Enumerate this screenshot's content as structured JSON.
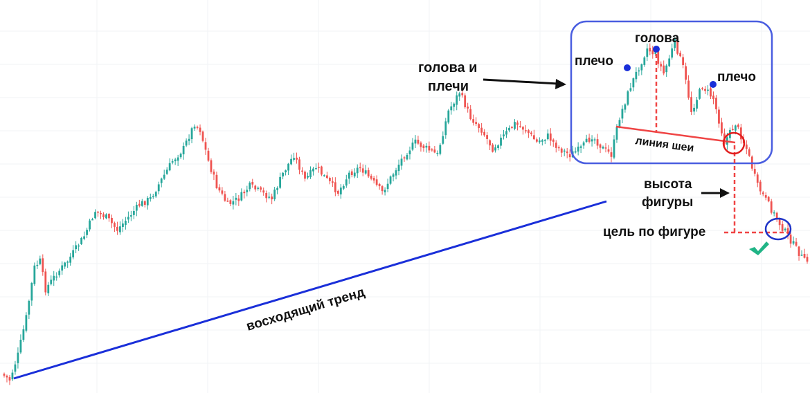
{
  "chart_data": {
    "type": "candlestick",
    "title": "",
    "xlabel": "",
    "ylabel": "",
    "grid": true,
    "colors": {
      "up": "#26a69a",
      "down": "#ef5350",
      "trendline": "#1a2fd9",
      "neckline": "#ef4444",
      "pattern_frame": "#4a5ee0",
      "target_marker": "#1e33c7",
      "neck_break_marker": "#e11d1d",
      "check": "#20b486",
      "arrow": "#111111"
    },
    "trend_segments": [
      {
        "from": 0,
        "to": 0.0,
        "desc": "start"
      },
      {
        "to": 0.3,
        "via": [
          [
            0,
            0.0
          ],
          [
            3,
            -0.02
          ],
          [
            6,
            0.06
          ],
          [
            9,
            0.18
          ],
          [
            12,
            0.34
          ],
          [
            14,
            0.36
          ],
          [
            16,
            0.27
          ],
          [
            20,
            0.32
          ],
          [
            24,
            0.36
          ],
          [
            27,
            0.4
          ],
          [
            30,
            0.44
          ],
          [
            34,
            0.52
          ],
          [
            38,
            0.5
          ],
          [
            42,
            0.46
          ],
          [
            46,
            0.5
          ],
          [
            50,
            0.54
          ],
          [
            54,
            0.56
          ],
          [
            58,
            0.62
          ],
          [
            62,
            0.68
          ],
          [
            66,
            0.72
          ],
          [
            70,
            0.8
          ],
          [
            72,
            0.78
          ],
          [
            75,
            0.68
          ],
          [
            78,
            0.6
          ],
          [
            82,
            0.54
          ],
          [
            86,
            0.56
          ],
          [
            90,
            0.6
          ],
          [
            94,
            0.58
          ],
          [
            98,
            0.56
          ],
          [
            102,
            0.64
          ],
          [
            106,
            0.7
          ],
          [
            110,
            0.62
          ],
          [
            114,
            0.66
          ],
          [
            118,
            0.62
          ],
          [
            122,
            0.58
          ],
          [
            126,
            0.64
          ],
          [
            130,
            0.66
          ],
          [
            134,
            0.62
          ],
          [
            138,
            0.58
          ],
          [
            142,
            0.64
          ],
          [
            146,
            0.7
          ],
          [
            150,
            0.74
          ],
          [
            154,
            0.72
          ],
          [
            158,
            0.7
          ],
          [
            162,
            0.84
          ],
          [
            166,
            0.9
          ],
          [
            170,
            0.82
          ],
          [
            174,
            0.78
          ],
          [
            178,
            0.72
          ],
          [
            182,
            0.76
          ],
          [
            186,
            0.8
          ],
          [
            190,
            0.78
          ],
          [
            194,
            0.74
          ],
          [
            198,
            0.76
          ],
          [
            202,
            0.72
          ],
          [
            206,
            0.7
          ],
          [
            210,
            0.72
          ],
          [
            214,
            0.76
          ],
          [
            218,
            0.72
          ],
          [
            221,
            0.7
          ],
          [
            224,
            0.82
          ],
          [
            228,
            0.92
          ],
          [
            231,
            0.98
          ],
          [
            234,
            1.04
          ],
          [
            237,
            1.02
          ],
          [
            240,
            0.96
          ],
          [
            244,
            1.06
          ],
          [
            247,
            0.98
          ],
          [
            250,
            0.84
          ],
          [
            254,
            0.92
          ],
          [
            258,
            0.88
          ],
          [
            262,
            0.74
          ],
          [
            266,
            0.8
          ],
          [
            270,
            0.72
          ],
          [
            274,
            0.6
          ],
          [
            278,
            0.54
          ],
          [
            282,
            0.48
          ],
          [
            285,
            0.44
          ],
          [
            288,
            0.4
          ],
          [
            291,
            0.36
          ]
        ]
      }
    ],
    "candle_count": 292,
    "annotations": {
      "trend_label": "восходящий тренд",
      "pattern_label_line1": "голова и",
      "pattern_label_line2": "плечи",
      "left_shoulder": "плечо",
      "head": "голова",
      "right_shoulder": "плечо",
      "neckline": "линия шеи",
      "height_line1": "высота",
      "height_line2": "фигуры",
      "target": "цель по фигуре"
    }
  }
}
